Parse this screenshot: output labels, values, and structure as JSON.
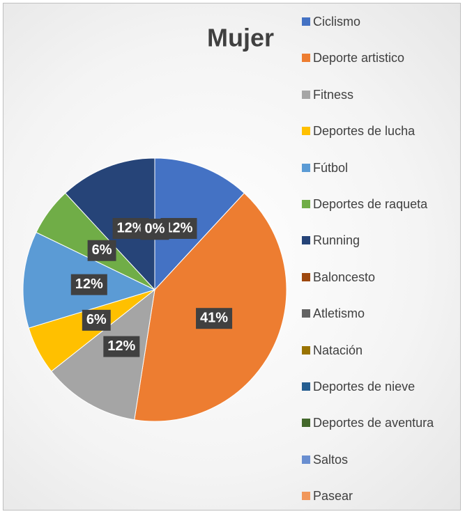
{
  "chart_data": {
    "type": "pie",
    "title": "Mujer",
    "categories": [
      "Ciclismo",
      "Deporte artistico",
      "Fitness",
      "Deportes de lucha",
      "Fútbol",
      "Deportes de raqueta",
      "Running",
      "Baloncesto",
      "Atletismo",
      "Natación",
      "Deportes de nieve",
      "Deportes de aventura",
      "Saltos",
      "Pasear"
    ],
    "values": [
      12,
      41,
      12,
      6,
      12,
      6,
      12,
      0,
      0,
      0,
      0,
      0,
      0,
      0
    ],
    "value_labels": [
      "12%",
      "41%",
      "12%",
      "6%",
      "12%",
      "6%",
      "12%",
      "0%",
      "0%",
      "0%",
      "0%",
      "0%",
      "0%",
      "0%"
    ],
    "colors": [
      "#4472c4",
      "#ed7d31",
      "#a5a5a5",
      "#ffc000",
      "#5b9bd5",
      "#70ad47",
      "#264478",
      "#9e480e",
      "#636363",
      "#997300",
      "#255e91",
      "#43682b",
      "#698ed0",
      "#f1975a"
    ]
  }
}
